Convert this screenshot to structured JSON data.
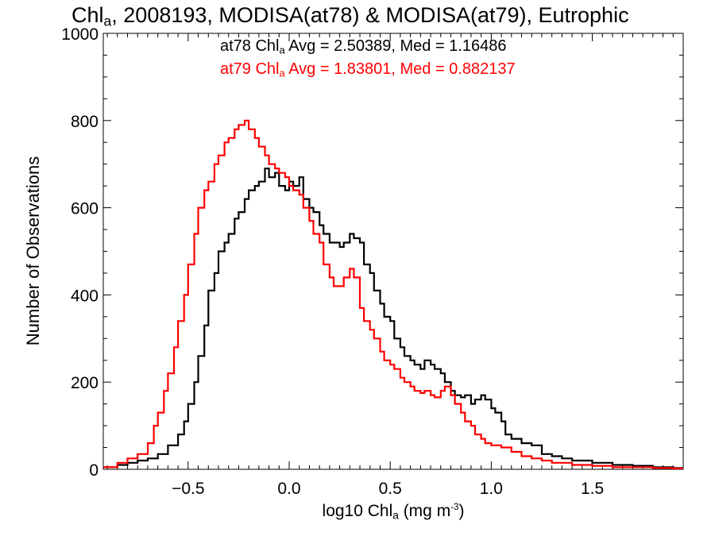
{
  "chart": {
    "title": {
      "pre": "Chl",
      "sub": "a",
      "post": ", 2008193, MODISA(at78) & MODISA(at79), Eutrophic"
    },
    "stats": [
      {
        "pre": "at78 Chl",
        "sub": "a",
        "post": " Avg = 2.50389, Med = 1.16486",
        "color": "#000000"
      },
      {
        "pre": "at79 Chl",
        "sub": "a",
        "post": " Avg = 1.83801, Med = 0.882137",
        "color": "#ff0000"
      }
    ],
    "xlabel": {
      "pre": "log10 Chl",
      "sub": "a",
      "mid": " (mg m",
      "sup": "-3",
      "post": ")"
    },
    "ylabel": "Number of Observations"
  },
  "chart_data": {
    "type": "line",
    "step": true,
    "xlim": [
      -0.92,
      1.95
    ],
    "ylim": [
      0,
      1000
    ],
    "xticks": [
      -0.5,
      0.0,
      0.5,
      1.0,
      1.5
    ],
    "xtick_labels": [
      "−0.5",
      "0.0",
      "0.5",
      "1.0",
      "1.5"
    ],
    "yticks": [
      0,
      200,
      400,
      600,
      800,
      1000
    ],
    "ytick_labels": [
      "0",
      "200",
      "400",
      "600",
      "800",
      "1000"
    ],
    "grid": false,
    "series": [
      {
        "color": "#000000",
        "points": [
          [
            -0.92,
            5
          ],
          [
            -0.85,
            10
          ],
          [
            -0.8,
            15
          ],
          [
            -0.75,
            20
          ],
          [
            -0.7,
            25
          ],
          [
            -0.65,
            35
          ],
          [
            -0.6,
            55
          ],
          [
            -0.55,
            80
          ],
          [
            -0.52,
            110
          ],
          [
            -0.5,
            150
          ],
          [
            -0.47,
            200
          ],
          [
            -0.45,
            260
          ],
          [
            -0.42,
            330
          ],
          [
            -0.4,
            410
          ],
          [
            -0.37,
            450
          ],
          [
            -0.35,
            500
          ],
          [
            -0.32,
            520
          ],
          [
            -0.3,
            540
          ],
          [
            -0.27,
            575
          ],
          [
            -0.25,
            590
          ],
          [
            -0.22,
            620
          ],
          [
            -0.2,
            640
          ],
          [
            -0.17,
            650
          ],
          [
            -0.15,
            660
          ],
          [
            -0.12,
            690
          ],
          [
            -0.1,
            670
          ],
          [
            -0.07,
            680
          ],
          [
            -0.05,
            650
          ],
          [
            -0.02,
            640
          ],
          [
            0.0,
            660
          ],
          [
            0.02,
            650
          ],
          [
            0.05,
            670
          ],
          [
            0.07,
            620
          ],
          [
            0.1,
            600
          ],
          [
            0.12,
            590
          ],
          [
            0.15,
            560
          ],
          [
            0.17,
            540
          ],
          [
            0.2,
            520
          ],
          [
            0.22,
            520
          ],
          [
            0.25,
            510
          ],
          [
            0.27,
            520
          ],
          [
            0.3,
            540
          ],
          [
            0.32,
            530
          ],
          [
            0.35,
            520
          ],
          [
            0.37,
            470
          ],
          [
            0.4,
            450
          ],
          [
            0.42,
            410
          ],
          [
            0.45,
            380
          ],
          [
            0.47,
            350
          ],
          [
            0.5,
            340
          ],
          [
            0.52,
            300
          ],
          [
            0.55,
            280
          ],
          [
            0.57,
            260
          ],
          [
            0.6,
            250
          ],
          [
            0.62,
            240
          ],
          [
            0.65,
            230
          ],
          [
            0.67,
            250
          ],
          [
            0.7,
            240
          ],
          [
            0.72,
            230
          ],
          [
            0.75,
            220
          ],
          [
            0.77,
            200
          ],
          [
            0.8,
            180
          ],
          [
            0.82,
            170
          ],
          [
            0.85,
            165
          ],
          [
            0.87,
            170
          ],
          [
            0.9,
            150
          ],
          [
            0.92,
            160
          ],
          [
            0.95,
            170
          ],
          [
            0.97,
            160
          ],
          [
            1.0,
            140
          ],
          [
            1.02,
            130
          ],
          [
            1.05,
            110
          ],
          [
            1.07,
            80
          ],
          [
            1.1,
            70
          ],
          [
            1.15,
            60
          ],
          [
            1.2,
            55
          ],
          [
            1.25,
            35
          ],
          [
            1.3,
            30
          ],
          [
            1.35,
            25
          ],
          [
            1.4,
            20
          ],
          [
            1.5,
            15
          ],
          [
            1.6,
            10
          ],
          [
            1.7,
            8
          ],
          [
            1.8,
            5
          ],
          [
            1.9,
            3
          ]
        ]
      },
      {
        "color": "#ff0000",
        "points": [
          [
            -0.92,
            5
          ],
          [
            -0.85,
            15
          ],
          [
            -0.8,
            25
          ],
          [
            -0.75,
            35
          ],
          [
            -0.7,
            60
          ],
          [
            -0.67,
            100
          ],
          [
            -0.65,
            130
          ],
          [
            -0.62,
            180
          ],
          [
            -0.6,
            220
          ],
          [
            -0.57,
            280
          ],
          [
            -0.55,
            340
          ],
          [
            -0.52,
            400
          ],
          [
            -0.5,
            470
          ],
          [
            -0.47,
            540
          ],
          [
            -0.45,
            600
          ],
          [
            -0.42,
            640
          ],
          [
            -0.4,
            660
          ],
          [
            -0.37,
            700
          ],
          [
            -0.35,
            720
          ],
          [
            -0.32,
            750
          ],
          [
            -0.3,
            760
          ],
          [
            -0.27,
            780
          ],
          [
            -0.25,
            790
          ],
          [
            -0.22,
            800
          ],
          [
            -0.2,
            780
          ],
          [
            -0.17,
            760
          ],
          [
            -0.15,
            740
          ],
          [
            -0.12,
            720
          ],
          [
            -0.1,
            700
          ],
          [
            -0.07,
            690
          ],
          [
            -0.05,
            680
          ],
          [
            -0.02,
            670
          ],
          [
            0.0,
            650
          ],
          [
            0.02,
            640
          ],
          [
            0.05,
            630
          ],
          [
            0.07,
            600
          ],
          [
            0.1,
            570
          ],
          [
            0.12,
            540
          ],
          [
            0.15,
            520
          ],
          [
            0.17,
            470
          ],
          [
            0.2,
            440
          ],
          [
            0.22,
            420
          ],
          [
            0.25,
            420
          ],
          [
            0.27,
            440
          ],
          [
            0.3,
            460
          ],
          [
            0.32,
            440
          ],
          [
            0.35,
            370
          ],
          [
            0.37,
            340
          ],
          [
            0.4,
            320
          ],
          [
            0.42,
            300
          ],
          [
            0.45,
            270
          ],
          [
            0.47,
            250
          ],
          [
            0.5,
            240
          ],
          [
            0.52,
            230
          ],
          [
            0.55,
            210
          ],
          [
            0.57,
            200
          ],
          [
            0.6,
            190
          ],
          [
            0.62,
            180
          ],
          [
            0.65,
            175
          ],
          [
            0.67,
            180
          ],
          [
            0.7,
            170
          ],
          [
            0.72,
            165
          ],
          [
            0.75,
            180
          ],
          [
            0.77,
            190
          ],
          [
            0.8,
            170
          ],
          [
            0.82,
            150
          ],
          [
            0.85,
            130
          ],
          [
            0.87,
            110
          ],
          [
            0.9,
            100
          ],
          [
            0.92,
            80
          ],
          [
            0.95,
            70
          ],
          [
            0.97,
            60
          ],
          [
            1.0,
            55
          ],
          [
            1.05,
            50
          ],
          [
            1.1,
            40
          ],
          [
            1.15,
            30
          ],
          [
            1.2,
            25
          ],
          [
            1.25,
            20
          ],
          [
            1.3,
            15
          ],
          [
            1.4,
            10
          ],
          [
            1.5,
            8
          ],
          [
            1.6,
            5
          ],
          [
            1.8,
            3
          ],
          [
            1.9,
            2
          ]
        ]
      }
    ]
  }
}
